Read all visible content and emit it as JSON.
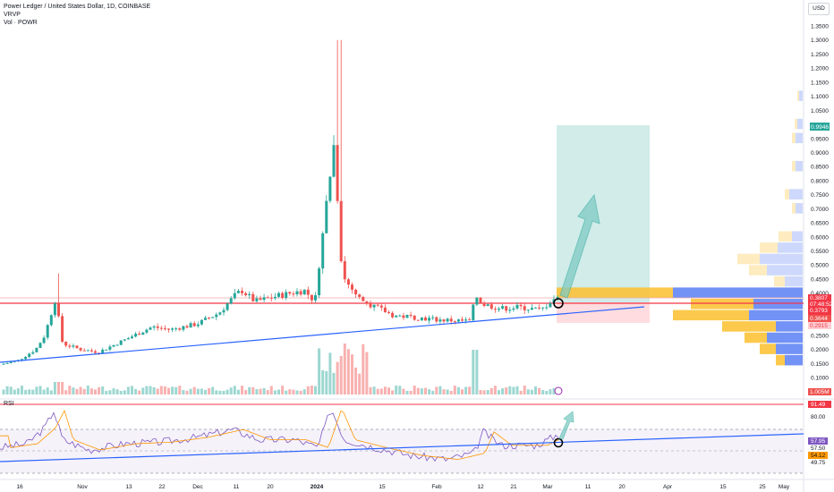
{
  "header": {
    "symbol_line": "Power Ledger / United States Dollar, 1D, COINBASE",
    "indicator_1": "VRVP",
    "indicator_2": "Vol · POWR",
    "currency": "USD"
  },
  "rsi_label": "RSI",
  "colors": {
    "up": "#26a69a",
    "down": "#ef5350",
    "trendline": "#2962ff",
    "resistance": "#f23645",
    "target_zone": "#b2dfdb",
    "stop_zone": "#ffcdd2",
    "profile_up": "#fbc02d",
    "profile_down": "#5b7ff5"
  },
  "chart_data": [
    {
      "type": "candlestick",
      "title": "Power Ledger / United States Dollar, 1D, COINBASE",
      "yaxis_ticks": [
        "1.3500",
        "1.3000",
        "1.2500",
        "1.2000",
        "1.1500",
        "1.1000",
        "1.0500",
        "1.0000",
        "0.9500",
        "0.9000",
        "0.8500",
        "0.8000",
        "0.7500",
        "0.7000",
        "0.6500",
        "0.6000",
        "0.5500",
        "0.5000",
        "0.4500",
        "0.4000",
        "0.3500",
        "0.3000",
        "0.2500",
        "0.2000",
        "0.1500",
        "0.1000"
      ],
      "xaxis_ticks": [
        "16",
        "Nov",
        "13",
        "22",
        "Dec",
        "11",
        "20",
        "2024",
        "15",
        "Feb",
        "12",
        "21",
        "Mar",
        "11",
        "20",
        "Apr",
        "15",
        "25",
        "May"
      ],
      "ohlc_sample": [
        {
          "date": "Oct 16",
          "close": 0.146
        },
        {
          "date": "Oct 28",
          "open": 0.25,
          "high": 0.47,
          "low": 0.23,
          "close": 0.38
        },
        {
          "date": "Nov 13",
          "close": 0.2
        },
        {
          "date": "Dec 11",
          "close": 0.41
        },
        {
          "date": "Jan 1",
          "open": 0.38,
          "high": 1.3,
          "low": 0.33,
          "close": 0.96
        },
        {
          "date": "Feb 12",
          "open": 0.3,
          "high": 0.42,
          "low": 0.3,
          "close": 0.39
        },
        {
          "date": "Mar 1",
          "close": 0.3793
        }
      ],
      "price_labels": [
        "0.9946",
        "0.3807",
        "07:48:52",
        "0.3793",
        "0.3644",
        "0.2915"
      ],
      "volume_label": "1.005M",
      "annotations": {
        "resistance_price": 0.37,
        "trendline_from": {
          "date": "Oct 16",
          "price": 0.15
        },
        "trendline_to": {
          "date": "Mar 29",
          "price": 0.34
        },
        "long_entry": 0.3793,
        "long_target": 0.9946,
        "long_stop": 0.2915
      }
    },
    {
      "type": "line",
      "title": "RSI",
      "yaxis_ticks": [
        "80.00",
        "49.75"
      ],
      "values_labels": [
        "91.49",
        "57.95",
        "57.50",
        "54.12"
      ],
      "bands": [
        30,
        70
      ]
    }
  ]
}
